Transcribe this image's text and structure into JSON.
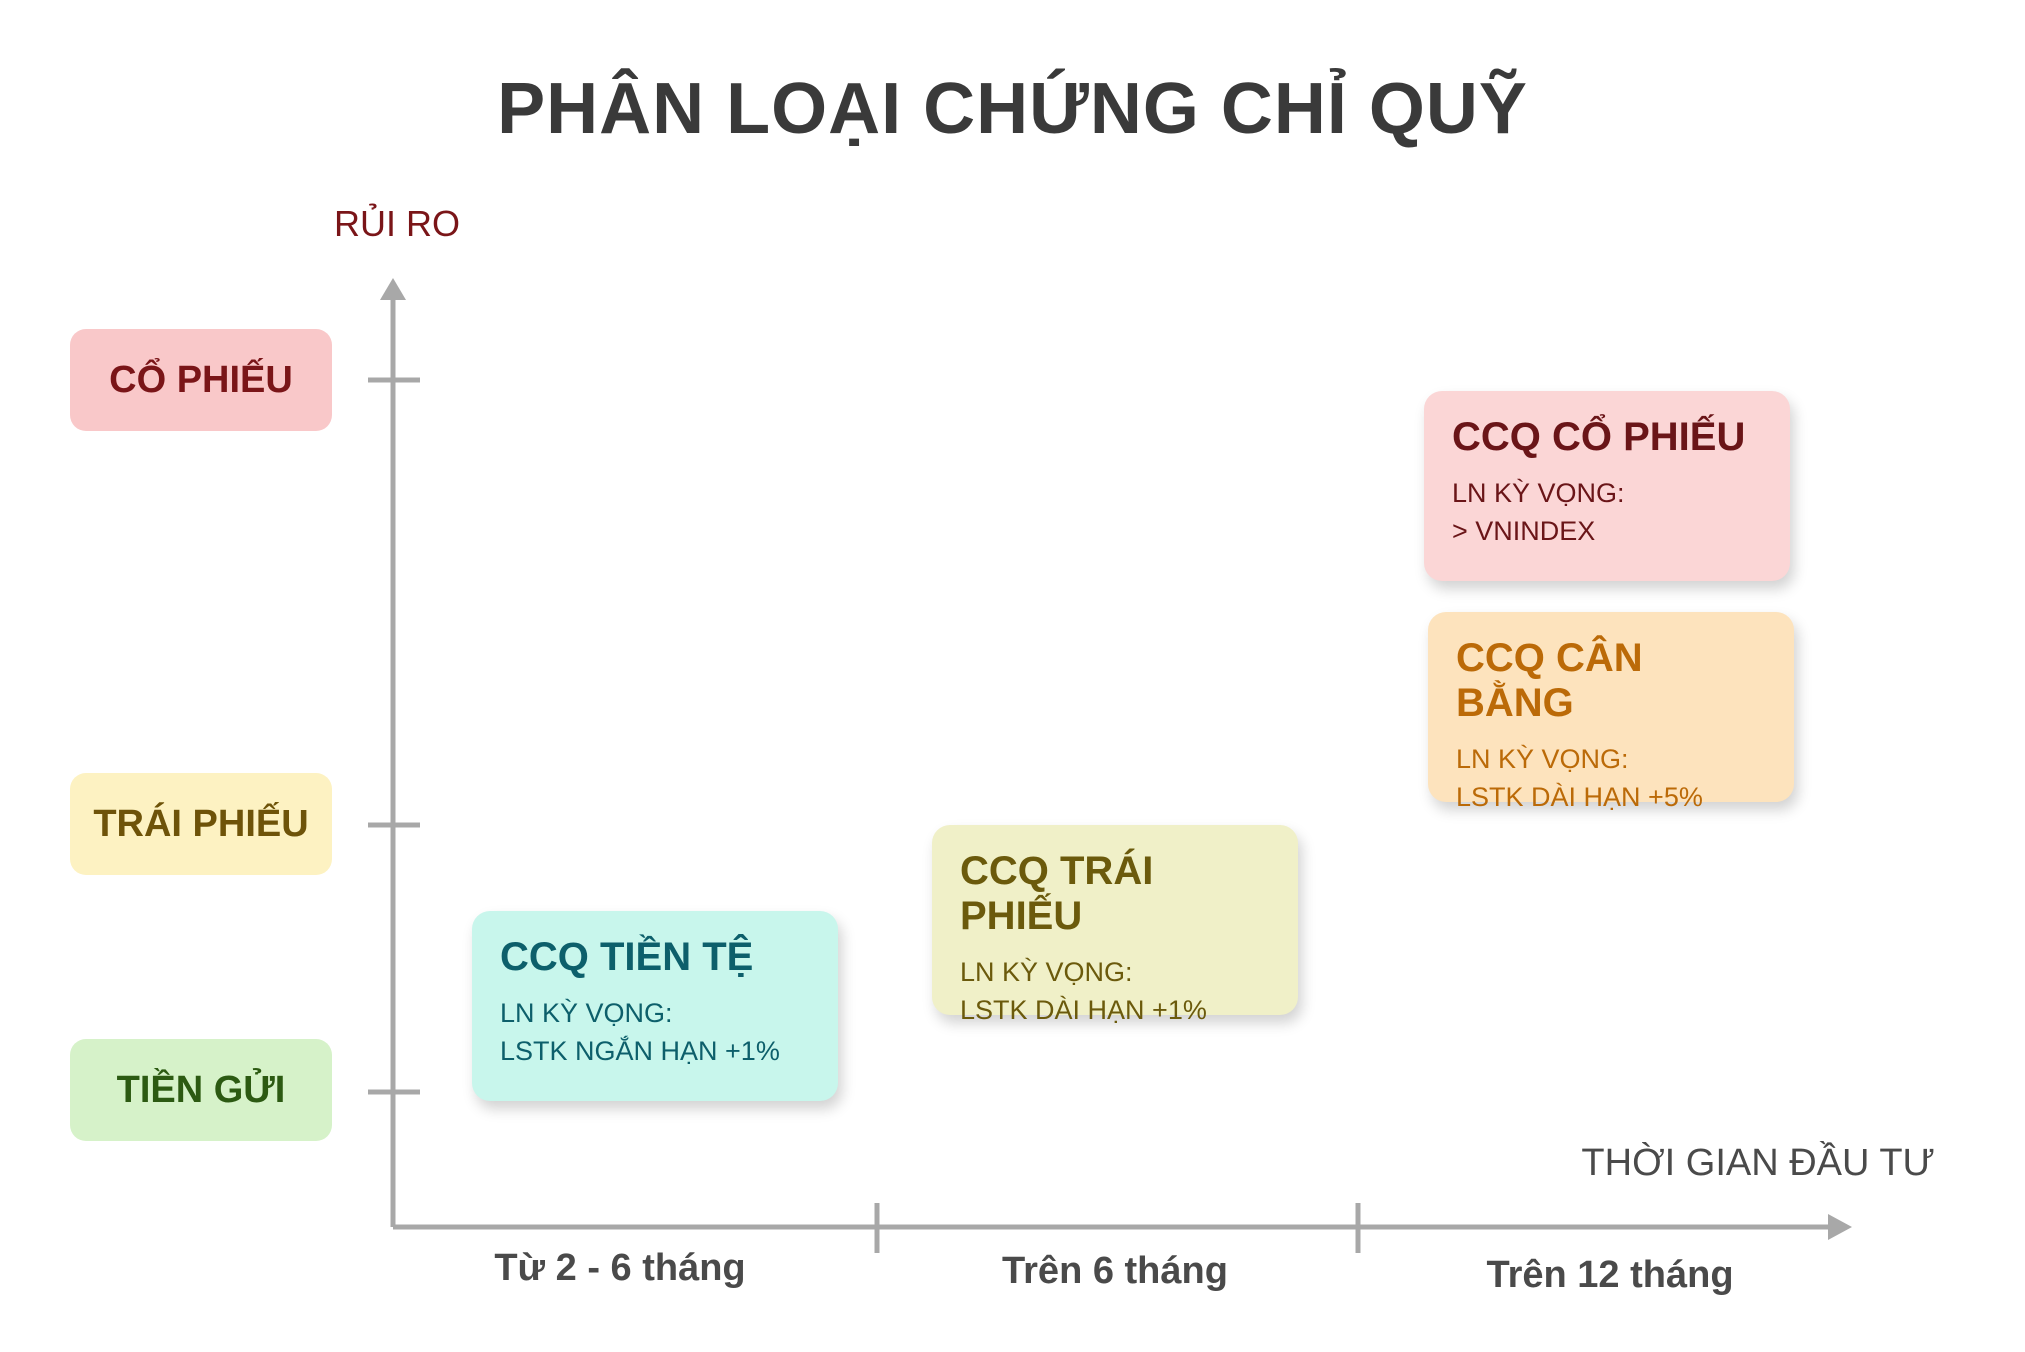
{
  "title": "PHÂN LOẠI CHỨNG CHỈ QUỸ",
  "y_axis_label": "RỦI RO",
  "x_axis_label": "THỜI GIAN ĐẦU TƯ",
  "risk_levels": [
    {
      "label": "CỔ PHIẾU",
      "color": "#f9c8c9"
    },
    {
      "label": "TRÁI PHIẾU",
      "color": "#fdf2c2"
    },
    {
      "label": "TIỀN GỬI",
      "color": "#d6f2c9"
    }
  ],
  "time_ranges": [
    "Từ 2 - 6 tháng",
    "Trên 6 tháng",
    "Trên 12 tháng"
  ],
  "funds": {
    "money": {
      "title": "CCQ TIỀN TỆ",
      "line1": "LN KỲ VỌNG:",
      "line2": "LSTK NGẮN HẠN +1%"
    },
    "bond": {
      "title": "CCQ TRÁI PHIẾU",
      "line1": "LN KỲ VỌNG:",
      "line2": "LSTK DÀI HẠN +1%"
    },
    "stock": {
      "title": "CCQ CỔ PHIẾU",
      "line1": "LN KỲ VỌNG:",
      "line2": "> VNINDEX"
    },
    "balanced": {
      "title": "CCQ CÂN BẰNG",
      "line1": "LN KỲ VỌNG:",
      "line2": "LSTK DÀI HẠN +5%"
    }
  }
}
